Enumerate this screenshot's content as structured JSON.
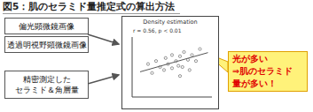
{
  "title": "図5：肌のセラミド量推定式の算出方法",
  "inputs": [
    "偏光顕微鏡画像",
    "透過明視野顕微鏡画像"
  ],
  "measured": [
    "精密測定した",
    "セラミド＆角層量"
  ],
  "chart_data": {
    "type": "scatter",
    "title": "Density estimation",
    "annotation": "r = 0.56, p < 0.01",
    "x": [
      2,
      2.5,
      3,
      3.5,
      4,
      4.2,
      4.5,
      5,
      5,
      5.5,
      5.8,
      6,
      6.3,
      6.5,
      7,
      7.2,
      7.5,
      8,
      8.5,
      6
    ],
    "values": [
      5.5,
      4,
      6,
      5,
      4.5,
      6.5,
      5.5,
      7,
      4.8,
      6,
      5.2,
      6.8,
      5,
      7.5,
      6.2,
      4.5,
      7,
      6,
      8,
      3.5
    ],
    "xlim": [
      0,
      10
    ],
    "ylim": [
      0,
      10
    ],
    "tick_labels": false,
    "color": "#777777",
    "trend": {
      "x": [
        1,
        9.5
      ],
      "values": [
        4.2,
        7.4
      ]
    }
  },
  "callout": [
    "光が多い",
    "⇒肌のセラミド",
    "量が多い！"
  ]
}
